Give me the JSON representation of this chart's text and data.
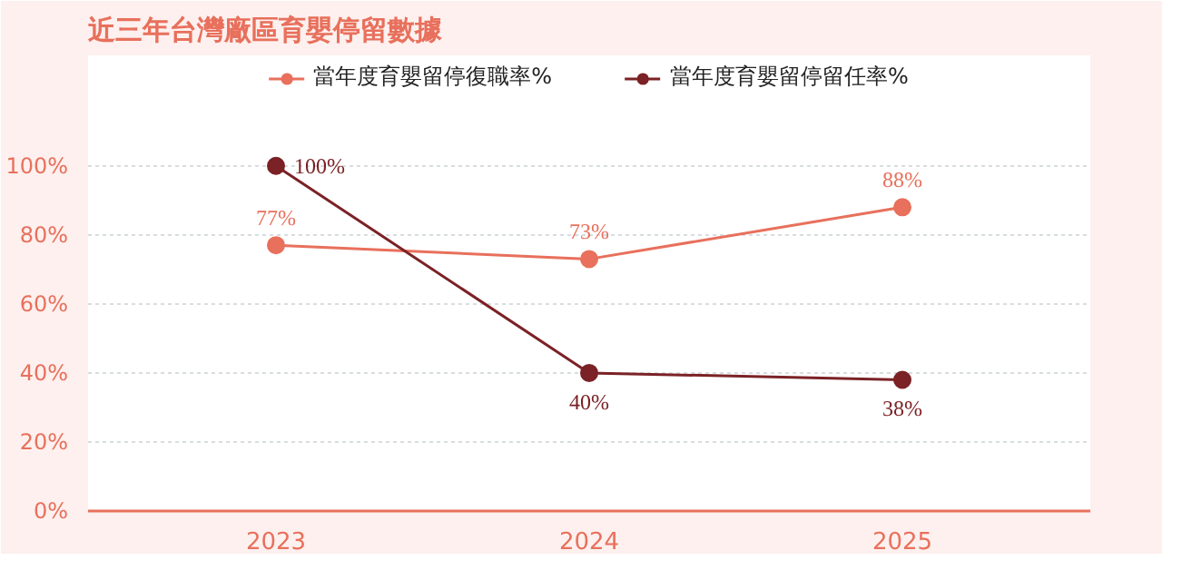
{
  "chart_data": {
    "type": "line",
    "title": "近三年台灣廠區育嬰停留數據",
    "categories": [
      "2023",
      "2024",
      "2025"
    ],
    "series": [
      {
        "name": "當年度育嬰留停復職率%",
        "color": "#e8705c",
        "values": [
          77,
          73,
          88
        ],
        "value_labels": [
          "77%",
          "73%",
          "88%"
        ]
      },
      {
        "name": "當年度育嬰留停留任率%",
        "color": "#7b2226",
        "values": [
          100,
          40,
          38
        ],
        "value_labels": [
          "100%",
          "40%",
          "38%"
        ]
      }
    ],
    "ylim": [
      0,
      100
    ],
    "yticks": [
      {
        "value": 0,
        "label": "0%"
      },
      {
        "value": 20,
        "label": "20%"
      },
      {
        "value": 40,
        "label": "40%"
      },
      {
        "value": 60,
        "label": "60%"
      },
      {
        "value": 80,
        "label": "80%"
      },
      {
        "value": 100,
        "label": "100%"
      }
    ],
    "grid": "y",
    "legend": "top",
    "marker": "circle",
    "line_style": "solid"
  }
}
